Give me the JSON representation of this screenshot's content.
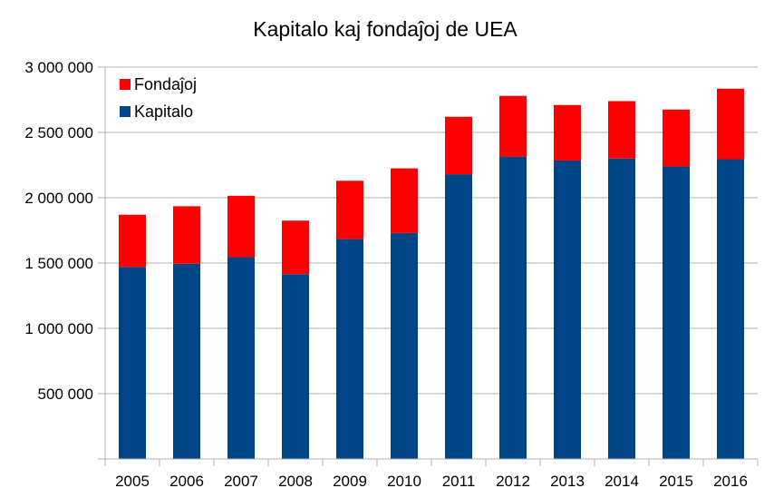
{
  "chart_data": {
    "type": "bar",
    "stacked": true,
    "title": "Kapitalo kaj fondaĵoj de UEA",
    "xlabel": "",
    "ylabel": "",
    "categories": [
      "2005",
      "2006",
      "2007",
      "2008",
      "2009",
      "2010",
      "2011",
      "2012",
      "2013",
      "2014",
      "2015",
      "2016"
    ],
    "series": [
      {
        "name": "Kapitalo",
        "color": "#004586",
        "values": [
          1470000,
          1495000,
          1545000,
          1415000,
          1685000,
          1730000,
          2180000,
          2315000,
          2285000,
          2300000,
          2240000,
          2295000
        ]
      },
      {
        "name": "Fondaĵoj",
        "color": "#ff0000",
        "values": [
          400000,
          440000,
          470000,
          410000,
          445000,
          495000,
          440000,
          465000,
          425000,
          440000,
          435000,
          540000
        ]
      }
    ],
    "ylim": [
      0,
      3000000
    ],
    "yticks": [
      0,
      500000,
      1000000,
      1500000,
      2000000,
      2500000,
      3000000
    ],
    "ytick_labels": [
      "",
      "500 000",
      "1 000 000",
      "1 500 000",
      "2 000 000",
      "2 500 000",
      "3 000 000"
    ],
    "grid": true,
    "legend_position": "top-left",
    "legend_order": [
      "Fondaĵoj",
      "Kapitalo"
    ]
  }
}
